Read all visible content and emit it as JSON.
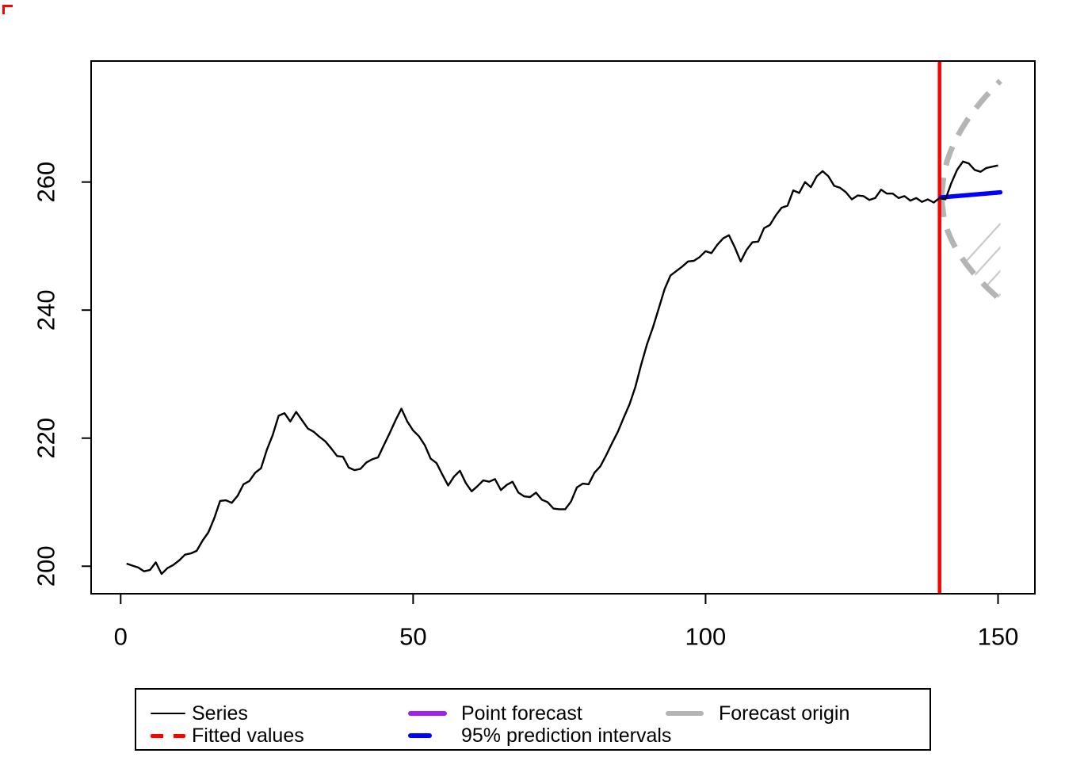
{
  "chart_data": {
    "type": "line",
    "title": "",
    "xlabel": "",
    "ylabel": "",
    "axes": {
      "xlim": [
        -5.05,
        156.3
      ],
      "ylim": [
        195.7,
        278.9
      ],
      "x_ticks": [
        "0",
        "50",
        "100",
        "150"
      ],
      "x_tick_values": [
        0,
        50,
        100,
        150
      ],
      "y_ticks": [
        "200",
        "220",
        "240",
        "260"
      ],
      "y_tick_values": [
        200,
        220,
        240,
        260
      ],
      "grid": false
    },
    "series": {
      "name": "Series",
      "x_start": 1,
      "values": [
        200.4,
        200.1,
        199.8,
        199.2,
        199.4,
        200.6,
        198.8,
        199.7,
        200.2,
        200.9,
        201.8,
        202.0,
        202.4,
        204.0,
        205.3,
        207.5,
        210.2,
        210.3,
        209.9,
        211.0,
        212.8,
        213.3,
        214.6,
        215.3,
        218.2,
        220.5,
        223.5,
        223.9,
        222.6,
        224.1,
        222.8,
        221.5,
        221.0,
        220.2,
        219.5,
        218.4,
        217.2,
        217.1,
        215.4,
        215.0,
        215.2,
        216.2,
        216.7,
        217.0,
        218.9,
        220.8,
        222.8,
        224.6,
        222.6,
        221.2,
        220.3,
        218.9,
        216.8,
        216.1,
        214.3,
        212.6,
        214.0,
        214.9,
        213.0,
        211.7,
        212.5,
        213.4,
        213.2,
        213.6,
        211.9,
        212.7,
        213.2,
        211.5,
        210.9,
        210.8,
        211.5,
        210.4,
        210.0,
        209.0,
        208.9,
        208.9,
        210.1,
        212.3,
        212.9,
        212.8,
        214.6,
        215.6,
        217.3,
        219.2,
        221.0,
        223.2,
        225.3,
        228.0,
        231.5,
        234.7,
        237.3,
        240.3,
        243.3,
        245.4,
        246.1,
        246.8,
        247.6,
        247.7,
        248.3,
        249.2,
        248.9,
        250.2,
        251.2,
        251.7,
        249.8,
        247.6,
        249.4,
        250.6,
        250.7,
        252.8,
        253.3,
        254.8,
        256.0,
        256.3,
        258.7,
        258.3,
        260.0,
        259.2,
        260.9,
        261.7,
        260.9,
        259.4,
        259.1,
        258.4,
        257.3,
        257.9,
        257.8,
        257.2,
        257.5,
        258.8,
        258.2,
        258.2,
        257.5,
        257.8,
        257.1,
        257.5,
        256.9,
        257.3,
        256.8,
        257.5,
        257.3,
        259.8,
        261.9,
        263.2,
        262.9,
        261.9,
        261.6,
        262.2,
        262.4,
        262.6
      ]
    },
    "forecast_origin_x": 140,
    "point_forecast": {
      "x": [
        140.3,
        150.4
      ],
      "y": [
        257.6,
        258.4
      ]
    },
    "prediction_interval_95": {
      "x_start": 140.3,
      "x_end": 150.4,
      "start_value": 257.6,
      "upper_end": 275.8,
      "lower_end": 241.6,
      "fill": "hatched"
    },
    "colors": {
      "series": "#000000",
      "fitted_values": "#FF0000",
      "point_forecast": "#A020F0",
      "prediction_interval": "#0000FF",
      "forecast_origin": "#B4B4B4",
      "origin_vline": "#FF0000",
      "hatch": "#C9C9C9"
    },
    "legend": {
      "position": "bottom",
      "items": [
        {
          "label": "Series",
          "line": "solid-thin",
          "color": "#000000"
        },
        {
          "label": "Fitted values",
          "line": "dashed",
          "color": "#FF0000"
        },
        {
          "label": "Point forecast",
          "line": "solid-thick",
          "color": "#A020F0"
        },
        {
          "label": "95% prediction intervals",
          "line": "dash-thick",
          "color": "#0000FF"
        },
        {
          "label": "Forecast origin",
          "line": "solid-thick",
          "color": "#B4B4B4"
        }
      ]
    }
  }
}
